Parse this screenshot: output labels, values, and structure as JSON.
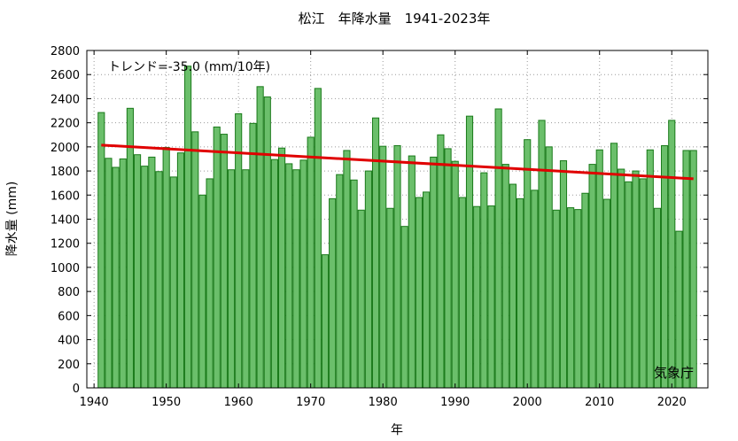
{
  "chart_data": {
    "type": "bar",
    "title": "松江　年降水量　1941-2023年",
    "xlabel": "年",
    "ylabel": "降水量 (mm)",
    "trend_label": "トレンド=-35.0 (mm/10年)",
    "source": "気象庁",
    "xlim": [
      1939,
      2025
    ],
    "ylim": [
      0,
      2800
    ],
    "x_ticks": [
      1940,
      1950,
      1960,
      1970,
      1980,
      1990,
      2000,
      2010,
      2020
    ],
    "y_ticks": [
      0,
      200,
      400,
      600,
      800,
      1000,
      1200,
      1400,
      1600,
      1800,
      2000,
      2200,
      2400,
      2600,
      2800
    ],
    "grid": true,
    "bar_color": "#6bbf6b",
    "bar_edge_color": "#1a7a1a",
    "trend_color": "#e00000",
    "trend_line": {
      "x": [
        1941,
        2023
      ],
      "y": [
        2015,
        1735
      ]
    },
    "x": [
      1941,
      1942,
      1943,
      1944,
      1945,
      1946,
      1947,
      1948,
      1949,
      1950,
      1951,
      1952,
      1953,
      1954,
      1955,
      1956,
      1957,
      1958,
      1959,
      1960,
      1961,
      1962,
      1963,
      1964,
      1965,
      1966,
      1967,
      1968,
      1969,
      1970,
      1971,
      1972,
      1973,
      1974,
      1975,
      1976,
      1977,
      1978,
      1979,
      1980,
      1981,
      1982,
      1983,
      1984,
      1985,
      1986,
      1987,
      1988,
      1989,
      1990,
      1991,
      1992,
      1993,
      1994,
      1995,
      1996,
      1997,
      1998,
      1999,
      2000,
      2001,
      2002,
      2003,
      2004,
      2005,
      2006,
      2007,
      2008,
      2009,
      2010,
      2011,
      2012,
      2013,
      2014,
      2015,
      2016,
      2017,
      2018,
      2019,
      2020,
      2021,
      2022,
      2023
    ],
    "values": [
      2285,
      1905,
      1830,
      1900,
      2320,
      1935,
      1840,
      1915,
      1795,
      1995,
      1750,
      1950,
      2670,
      2125,
      1600,
      1735,
      2165,
      2105,
      1810,
      2275,
      1810,
      2195,
      2500,
      2415,
      1895,
      1990,
      1860,
      1810,
      1890,
      2080,
      2485,
      1105,
      1570,
      1770,
      1970,
      1725,
      1475,
      1800,
      2240,
      2005,
      1490,
      2010,
      1340,
      1925,
      1580,
      1625,
      1915,
      2100,
      1985,
      1880,
      1580,
      2255,
      1505,
      1785,
      1510,
      2315,
      1855,
      1690,
      1570,
      2060,
      1640,
      2220,
      2000,
      1475,
      1885,
      1495,
      1480,
      1615,
      1855,
      1975,
      1565,
      2030,
      1815,
      1710,
      1800,
      1735,
      1975,
      1490,
      2010,
      2220,
      1300,
      1970,
      1970
    ]
  }
}
